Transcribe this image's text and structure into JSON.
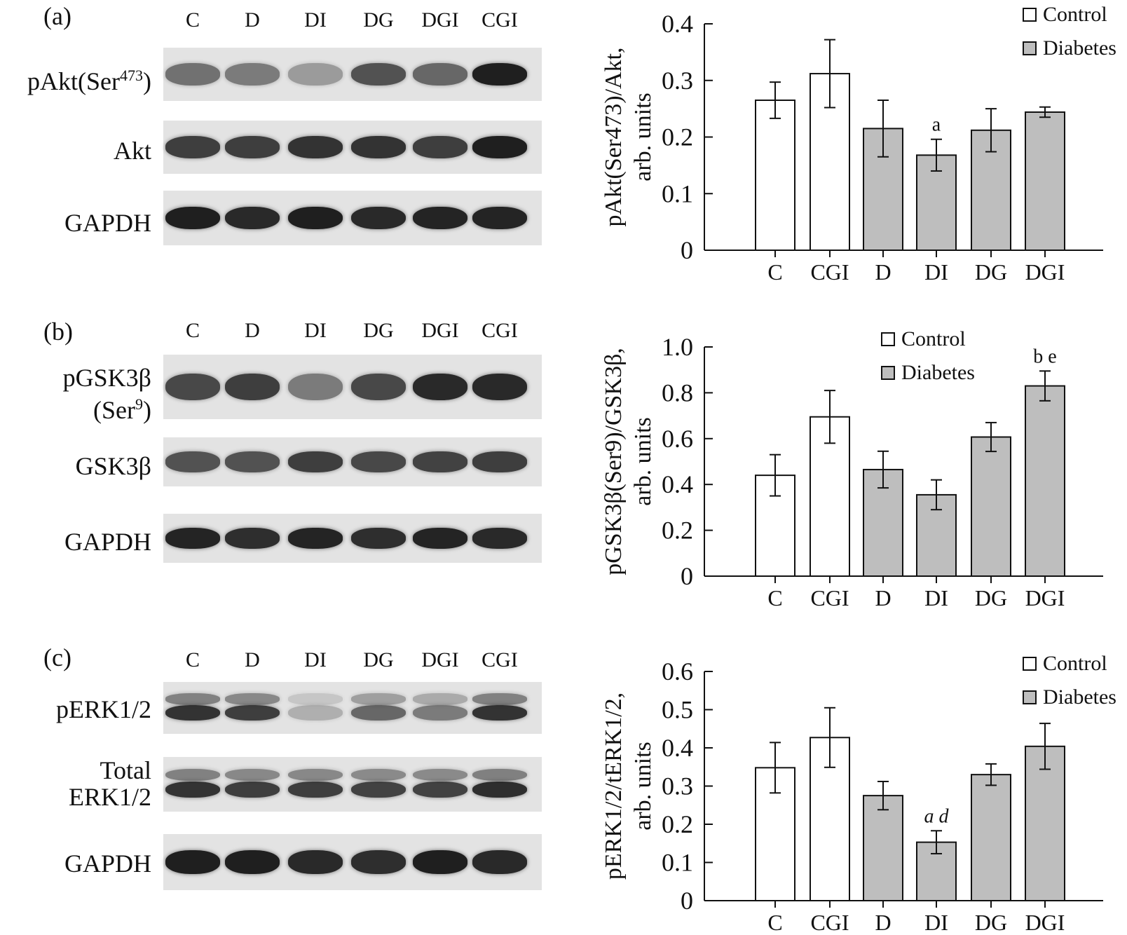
{
  "lanes": [
    "C",
    "D",
    "DI",
    "DG",
    "DGI",
    "CGI"
  ],
  "panels": [
    {
      "label": "(a)",
      "rows": [
        {
          "text": "pAkt(Ser",
          "sup": "473",
          "after": ")",
          "intensity": [
            0.55,
            0.5,
            0.35,
            0.7,
            0.6,
            0.95
          ]
        },
        {
          "text": "Akt",
          "intensity": [
            0.8,
            0.8,
            0.85,
            0.85,
            0.8,
            0.95
          ]
        },
        {
          "text": "GAPDH",
          "intensity": [
            0.95,
            0.9,
            0.95,
            0.9,
            0.92,
            0.92
          ]
        }
      ]
    },
    {
      "label": "(b)",
      "rows": [
        {
          "text": "pGSK3β",
          "text2": "(Ser",
          "sup": "9",
          "after": ")",
          "intensity": [
            0.75,
            0.8,
            0.5,
            0.75,
            0.9,
            0.9
          ]
        },
        {
          "text": "GSK3β",
          "intensity": [
            0.7,
            0.7,
            0.8,
            0.75,
            0.78,
            0.8
          ]
        },
        {
          "text": "GAPDH",
          "intensity": [
            0.92,
            0.88,
            0.92,
            0.88,
            0.92,
            0.9
          ]
        }
      ]
    },
    {
      "label": "(c)",
      "rows": [
        {
          "text": "pERK1/2",
          "intensity": [
            0.85,
            0.8,
            0.25,
            0.6,
            0.5,
            0.85
          ]
        },
        {
          "text": "Total",
          "text2": "ERK1/2",
          "intensity": [
            0.85,
            0.8,
            0.8,
            0.78,
            0.78,
            0.88
          ]
        },
        {
          "text": "GAPDH",
          "intensity": [
            0.95,
            0.95,
            0.9,
            0.88,
            0.95,
            0.9
          ]
        }
      ]
    }
  ],
  "chart_data": [
    {
      "type": "bar",
      "categories": [
        "C",
        "CGI",
        "D",
        "DI",
        "DG",
        "DGI"
      ],
      "group": [
        "Control",
        "Control",
        "Diabetes",
        "Diabetes",
        "Diabetes",
        "Diabetes"
      ],
      "values": [
        0.265,
        0.312,
        0.215,
        0.168,
        0.212,
        0.244
      ],
      "errors": [
        0.032,
        0.06,
        0.05,
        0.028,
        0.038,
        0.009
      ],
      "annotations": {
        "DI": "a"
      },
      "ylabel_line1": "pAkt(Ser473)/Akt,",
      "ylabel_line2": "arb. units",
      "ylim": [
        0,
        0.4
      ],
      "yticks": [
        "0",
        "0.1",
        "0.2",
        "0.3",
        "0.4"
      ],
      "legend": [
        "Control",
        "Diabetes"
      ]
    },
    {
      "type": "bar",
      "categories": [
        "C",
        "CGI",
        "D",
        "DI",
        "DG",
        "DGI"
      ],
      "group": [
        "Control",
        "Control",
        "Diabetes",
        "Diabetes",
        "Diabetes",
        "Diabetes"
      ],
      "values": [
        0.44,
        0.695,
        0.465,
        0.355,
        0.607,
        0.83
      ],
      "errors": [
        0.09,
        0.115,
        0.08,
        0.065,
        0.063,
        0.065
      ],
      "annotations": {
        "DGI": "b e"
      },
      "ylabel_line1": "pGSK3β(Ser9)/GSK3β,",
      "ylabel_line2": "arb. units",
      "ylim": [
        0,
        1.0
      ],
      "yticks": [
        "0",
        "0.2",
        "0.4",
        "0.6",
        "0.8",
        "1.0"
      ],
      "legend": [
        "Control",
        "Diabetes"
      ]
    },
    {
      "type": "bar",
      "categories": [
        "C",
        "CGI",
        "D",
        "DI",
        "DG",
        "DGI"
      ],
      "group": [
        "Control",
        "Control",
        "Diabetes",
        "Diabetes",
        "Diabetes",
        "Diabetes"
      ],
      "values": [
        0.348,
        0.427,
        0.275,
        0.153,
        0.33,
        0.404
      ],
      "errors": [
        0.066,
        0.078,
        0.037,
        0.03,
        0.028,
        0.06
      ],
      "annotations": {
        "DI": "a d"
      },
      "ylabel_line1": "pERK1/2/tERK1/2,",
      "ylabel_line2": "arb. units",
      "ylim": [
        0,
        0.6
      ],
      "yticks": [
        "0",
        "0.1",
        "0.2",
        "0.3",
        "0.4",
        "0.5",
        "0.6"
      ],
      "legend": [
        "Control",
        "Diabetes"
      ]
    }
  ]
}
